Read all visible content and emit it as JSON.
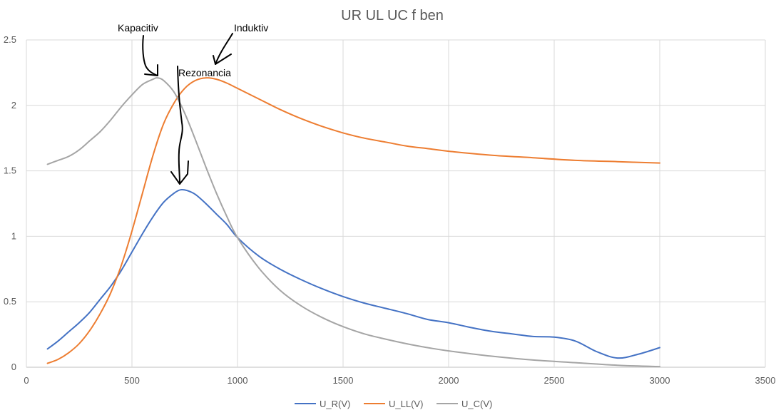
{
  "chart_data": {
    "type": "line",
    "title": "UR UL UC  f ben",
    "xlim": [
      0,
      3500
    ],
    "ylim": [
      0,
      2.5
    ],
    "x_ticks": [
      0,
      500,
      1000,
      1500,
      2000,
      2500,
      3000,
      3500
    ],
    "y_ticks": [
      0,
      0.5,
      1,
      1.5,
      2,
      2.5
    ],
    "x_tick_labels": [
      "0",
      "500",
      "1000",
      "1500",
      "2000",
      "2500",
      "3000",
      "3500"
    ],
    "y_tick_labels": [
      "0",
      "0.5",
      "1",
      "1.5",
      "2",
      "2.5"
    ],
    "grid": true,
    "legend_position": "bottom",
    "series": [
      {
        "name": "U_R(V)",
        "color": "#4472C4",
        "points": [
          [
            100,
            0.14
          ],
          [
            150,
            0.2
          ],
          [
            200,
            0.27
          ],
          [
            250,
            0.34
          ],
          [
            300,
            0.42
          ],
          [
            350,
            0.52
          ],
          [
            400,
            0.62
          ],
          [
            450,
            0.74
          ],
          [
            500,
            0.88
          ],
          [
            550,
            1.02
          ],
          [
            600,
            1.15
          ],
          [
            650,
            1.26
          ],
          [
            700,
            1.33
          ],
          [
            730,
            1.355
          ],
          [
            760,
            1.35
          ],
          [
            800,
            1.32
          ],
          [
            850,
            1.25
          ],
          [
            900,
            1.17
          ],
          [
            950,
            1.09
          ],
          [
            1000,
            0.99
          ],
          [
            1100,
            0.85
          ],
          [
            1200,
            0.75
          ],
          [
            1300,
            0.67
          ],
          [
            1400,
            0.6
          ],
          [
            1500,
            0.54
          ],
          [
            1600,
            0.49
          ],
          [
            1700,
            0.45
          ],
          [
            1800,
            0.41
          ],
          [
            1900,
            0.365
          ],
          [
            2000,
            0.34
          ],
          [
            2100,
            0.305
          ],
          [
            2200,
            0.275
          ],
          [
            2300,
            0.255
          ],
          [
            2400,
            0.235
          ],
          [
            2500,
            0.23
          ],
          [
            2600,
            0.2
          ],
          [
            2700,
            0.12
          ],
          [
            2800,
            0.07
          ],
          [
            2900,
            0.1
          ],
          [
            3000,
            0.15
          ]
        ]
      },
      {
        "name": "U_LL(V)",
        "color": "#ED7D31",
        "points": [
          [
            100,
            0.03
          ],
          [
            150,
            0.06
          ],
          [
            200,
            0.11
          ],
          [
            250,
            0.18
          ],
          [
            300,
            0.28
          ],
          [
            350,
            0.41
          ],
          [
            400,
            0.57
          ],
          [
            450,
            0.78
          ],
          [
            500,
            1.04
          ],
          [
            550,
            1.33
          ],
          [
            600,
            1.62
          ],
          [
            650,
            1.86
          ],
          [
            700,
            2.02
          ],
          [
            750,
            2.13
          ],
          [
            800,
            2.19
          ],
          [
            850,
            2.21
          ],
          [
            900,
            2.2
          ],
          [
            950,
            2.17
          ],
          [
            1000,
            2.13
          ],
          [
            1100,
            2.05
          ],
          [
            1200,
            1.97
          ],
          [
            1300,
            1.9
          ],
          [
            1400,
            1.84
          ],
          [
            1500,
            1.79
          ],
          [
            1600,
            1.75
          ],
          [
            1700,
            1.72
          ],
          [
            1800,
            1.69
          ],
          [
            1900,
            1.67
          ],
          [
            2000,
            1.65
          ],
          [
            2200,
            1.62
          ],
          [
            2400,
            1.6
          ],
          [
            2600,
            1.58
          ],
          [
            2800,
            1.57
          ],
          [
            3000,
            1.56
          ]
        ]
      },
      {
        "name": "U_C(V)",
        "color": "#A5A5A5",
        "points": [
          [
            100,
            1.55
          ],
          [
            150,
            1.58
          ],
          [
            200,
            1.61
          ],
          [
            250,
            1.66
          ],
          [
            300,
            1.73
          ],
          [
            350,
            1.8
          ],
          [
            400,
            1.89
          ],
          [
            450,
            1.99
          ],
          [
            500,
            2.08
          ],
          [
            550,
            2.16
          ],
          [
            600,
            2.2
          ],
          [
            620,
            2.21
          ],
          [
            650,
            2.19
          ],
          [
            700,
            2.1
          ],
          [
            750,
            1.94
          ],
          [
            800,
            1.74
          ],
          [
            850,
            1.53
          ],
          [
            900,
            1.33
          ],
          [
            950,
            1.15
          ],
          [
            1000,
            0.99
          ],
          [
            1100,
            0.76
          ],
          [
            1200,
            0.59
          ],
          [
            1300,
            0.47
          ],
          [
            1400,
            0.38
          ],
          [
            1500,
            0.31
          ],
          [
            1600,
            0.255
          ],
          [
            1700,
            0.215
          ],
          [
            1800,
            0.18
          ],
          [
            1900,
            0.15
          ],
          [
            2000,
            0.125
          ],
          [
            2200,
            0.085
          ],
          [
            2400,
            0.055
          ],
          [
            2600,
            0.035
          ],
          [
            2800,
            0.015
          ],
          [
            3000,
            0.005
          ]
        ]
      }
    ],
    "annotations": [
      {
        "text": "Kapacitiv"
      },
      {
        "text": "Induktiv"
      },
      {
        "text": "Rezonancia"
      }
    ]
  }
}
